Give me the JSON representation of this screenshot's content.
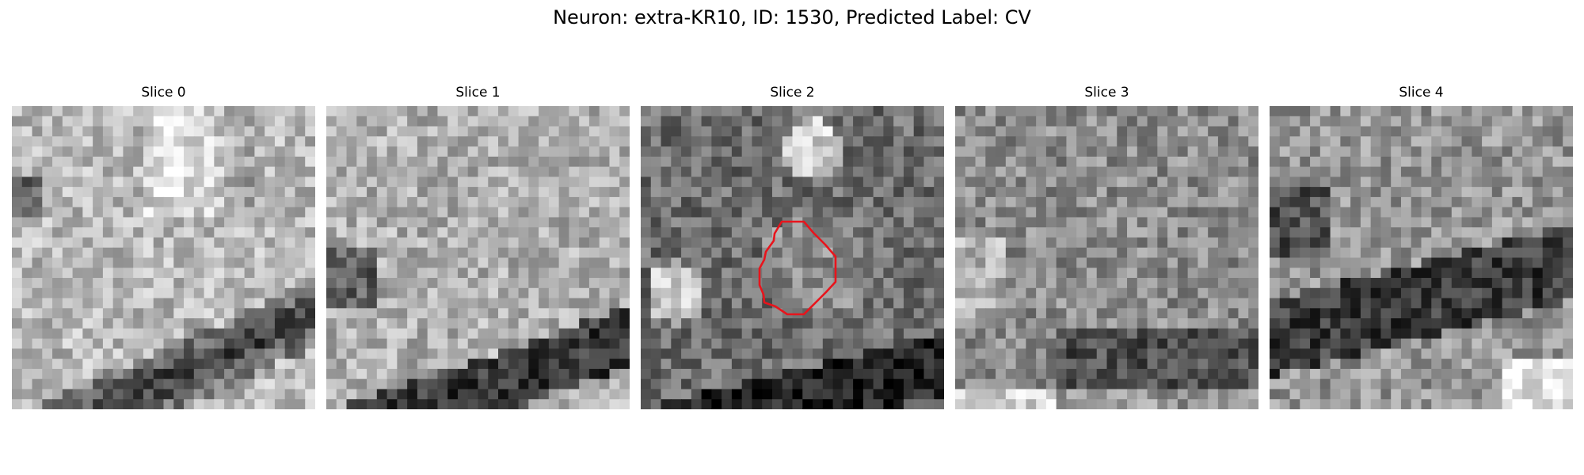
{
  "figure": {
    "title": "Neuron: extra-KR10, ID: 1530, Predicted Label: CV"
  },
  "panels": [
    {
      "label": "Slice 0",
      "seed": 11,
      "contour": false
    },
    {
      "label": "Slice 1",
      "seed": 23,
      "contour": false
    },
    {
      "label": "Slice 2",
      "seed": 37,
      "contour": true
    },
    {
      "label": "Slice 3",
      "seed": 53,
      "contour": false
    },
    {
      "label": "Slice 4",
      "seed": 71,
      "contour": false
    }
  ],
  "style": {
    "contour_color": "#e8141c",
    "colormap": "gray"
  }
}
